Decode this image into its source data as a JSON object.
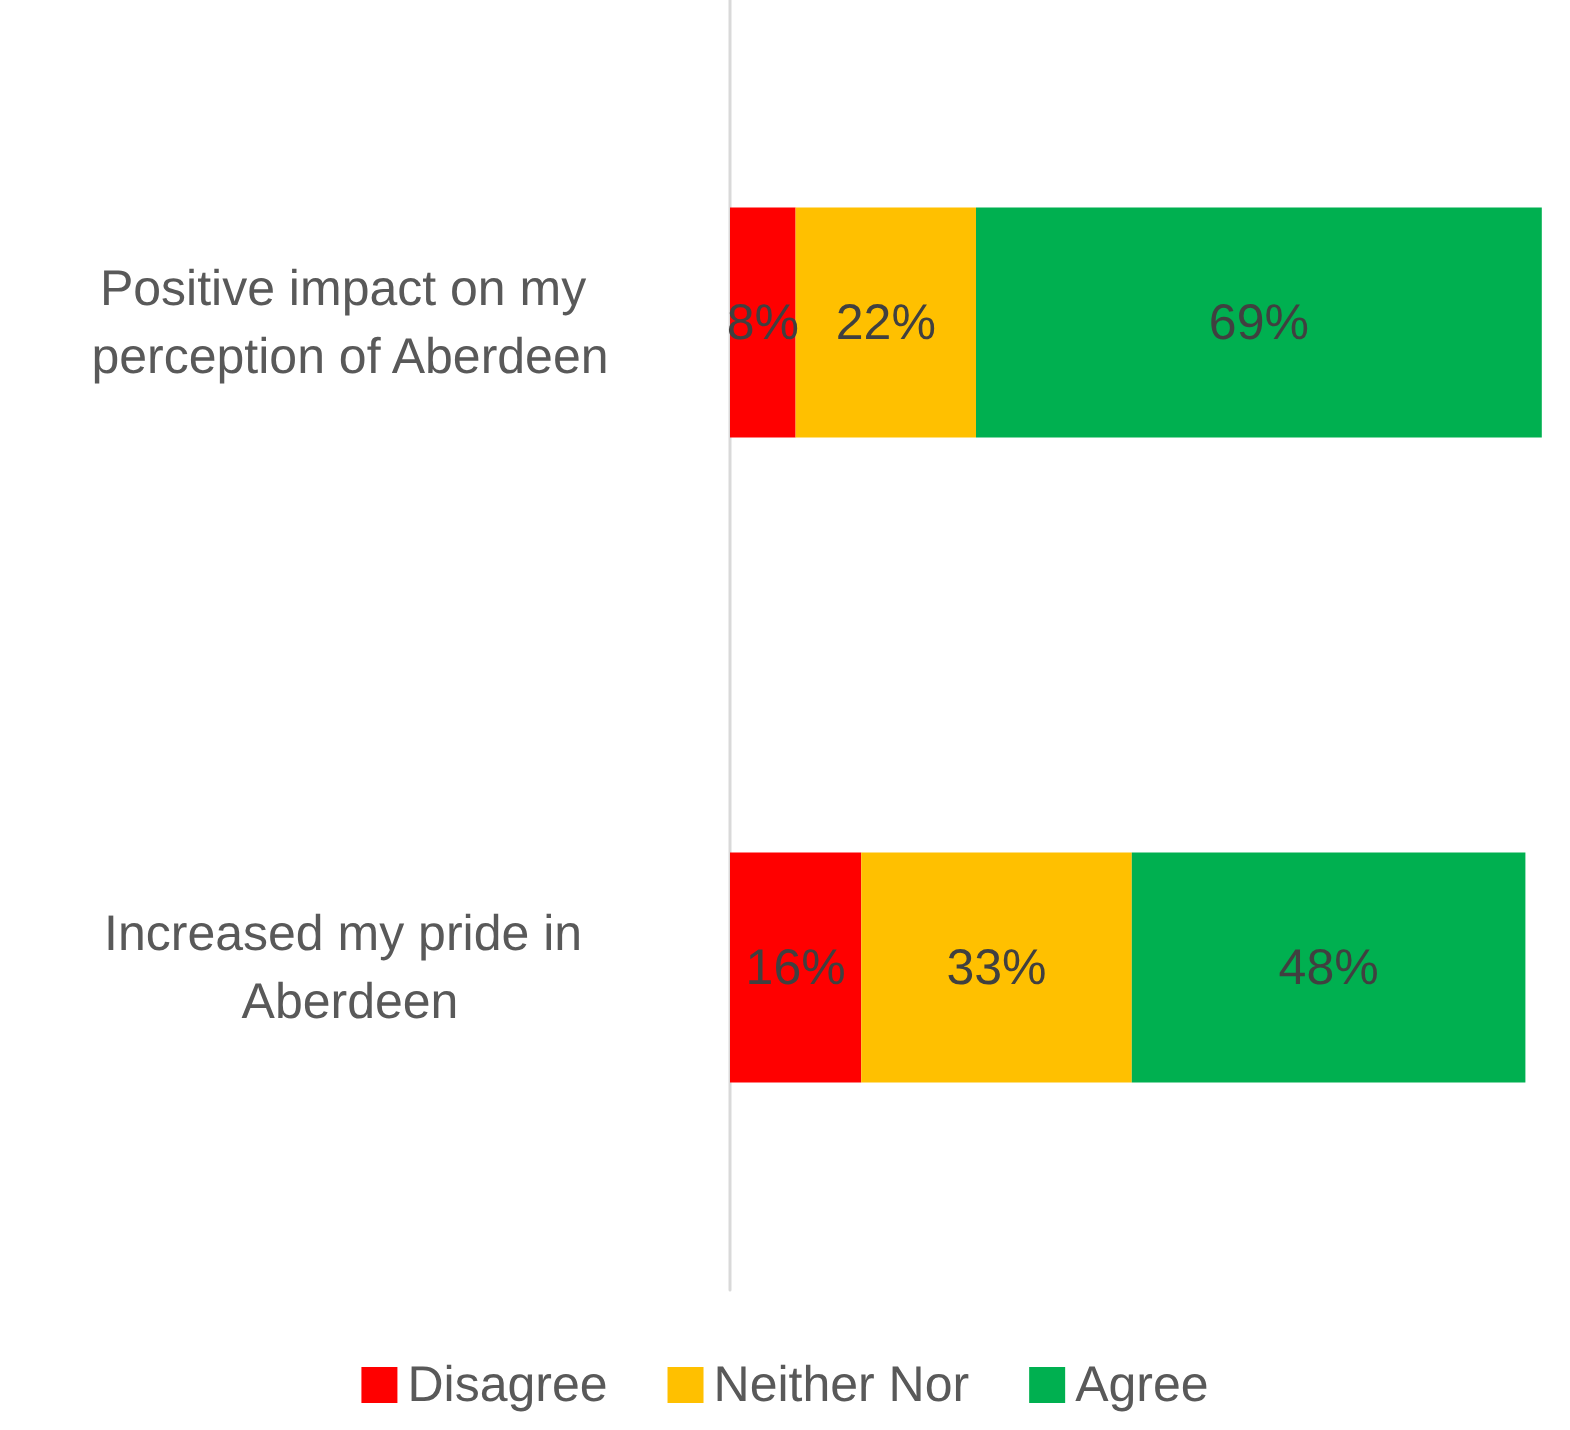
{
  "chart_data": {
    "type": "bar",
    "orientation": "horizontal",
    "stacked": true,
    "categories": [
      "Positive impact on my perception of Aberdeen",
      "Increased my pride in Aberdeen"
    ],
    "series": [
      {
        "name": "Disagree",
        "color": "#ff0000",
        "values": [
          8,
          16
        ],
        "value_labels": [
          "8%",
          "16%"
        ]
      },
      {
        "name": "Neither Nor",
        "color": "#ffc000",
        "values": [
          22,
          33
        ],
        "value_labels": [
          "22%",
          "33%"
        ]
      },
      {
        "name": "Agree",
        "color": "#00b050",
        "values": [
          69,
          48
        ],
        "value_labels": [
          "69%",
          "48%"
        ]
      }
    ],
    "tick_labels": "y",
    "legend": "bottom"
  }
}
